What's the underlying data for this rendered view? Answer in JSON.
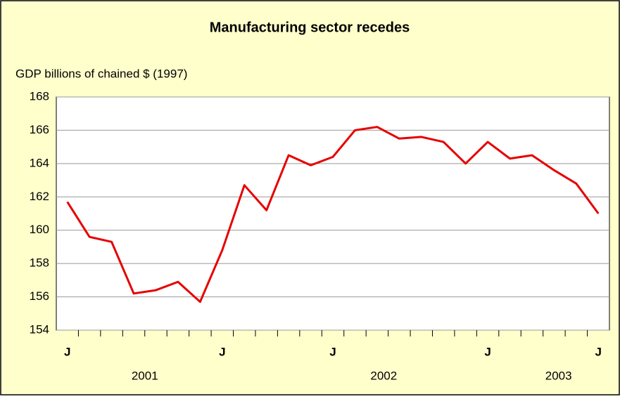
{
  "chart_data": {
    "type": "line",
    "title": "Manufacturing sector recedes",
    "y_label": "GDP billions of chained $ (1997)",
    "categories": [
      "J",
      null,
      null,
      null,
      null,
      null,
      null,
      "J",
      null,
      null,
      null,
      null,
      "J",
      null,
      null,
      null,
      null,
      null,
      null,
      "J",
      null,
      null,
      null,
      null,
      "J"
    ],
    "x_groups": [
      "2001",
      "2002",
      "2003"
    ],
    "series": [
      {
        "name": "GDP",
        "color": "#e60000",
        "values": [
          161.7,
          159.6,
          159.3,
          156.2,
          156.4,
          156.9,
          155.7,
          158.8,
          162.7,
          161.2,
          164.5,
          163.9,
          164.4,
          166.0,
          166.2,
          165.5,
          165.6,
          165.3,
          164.0,
          165.3,
          164.3,
          164.5,
          163.6,
          162.8,
          161.0
        ]
      }
    ],
    "ylim": [
      154,
      168
    ],
    "yticks": [
      154,
      156,
      158,
      160,
      162,
      164,
      166,
      168
    ],
    "grid": true
  }
}
